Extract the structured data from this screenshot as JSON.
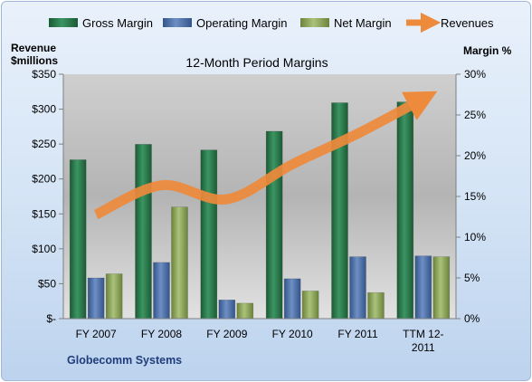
{
  "chart_data": {
    "type": "bar",
    "title": "12-Month Period Margins",
    "categories": [
      "FY 2007",
      "FY 2008",
      "FY 2009",
      "FY 2010",
      "FY 2011",
      "TTM 12-2011"
    ],
    "category_lines": [
      [
        "FY 2007"
      ],
      [
        "FY 2008"
      ],
      [
        "FY 2009"
      ],
      [
        "FY 2010"
      ],
      [
        "FY 2011"
      ],
      [
        "TTM 12-",
        "2011"
      ]
    ],
    "left_axis": {
      "title_lines": [
        "Revenue",
        "$millions"
      ],
      "range": [
        0,
        350
      ],
      "ticks": [
        0,
        50,
        100,
        150,
        200,
        250,
        300,
        350
      ],
      "tick_labels": [
        "$-",
        "$50",
        "$100",
        "$150",
        "$200",
        "$250",
        "$300",
        "$350"
      ]
    },
    "right_axis": {
      "title": "Margin %",
      "range": [
        0,
        30
      ],
      "ticks": [
        0,
        5,
        10,
        15,
        20,
        25,
        30
      ],
      "tick_labels": [
        "0%",
        "5%",
        "10%",
        "15%",
        "20%",
        "25%",
        "30%"
      ]
    },
    "series": [
      {
        "name": "Gross Margin",
        "type": "bar",
        "axis": "right",
        "color": "#2e7d4f",
        "values": [
          19.5,
          21.4,
          20.7,
          23.0,
          26.5,
          26.6
        ]
      },
      {
        "name": "Operating Margin",
        "type": "bar",
        "axis": "right",
        "color": "#4f72a8",
        "values": [
          5.0,
          6.9,
          2.3,
          4.9,
          7.6,
          7.7
        ]
      },
      {
        "name": "Net Margin",
        "type": "bar",
        "axis": "right",
        "color": "#8fa85a",
        "values": [
          5.5,
          13.7,
          1.9,
          3.4,
          3.2,
          7.6
        ]
      },
      {
        "name": "Revenues",
        "type": "line",
        "axis": "left",
        "color": "#ee8a3c",
        "values": [
          149,
          191,
          171,
          221,
          265,
          315
        ]
      }
    ],
    "legend": "top",
    "grid": false
  },
  "footer": "Globecomm Systems"
}
